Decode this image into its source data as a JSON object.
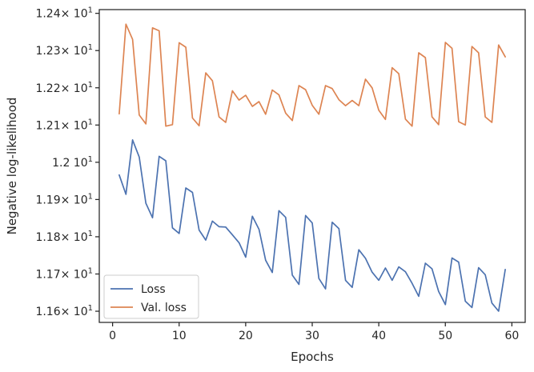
{
  "chart_data": {
    "type": "line",
    "xlabel": "Epochs",
    "ylabel": "Negative log-likelihood",
    "xlim": [
      -2,
      62
    ],
    "ylim": [
      11.57,
      12.41
    ],
    "x_ticks": [
      {
        "value": 0,
        "label": "0"
      },
      {
        "value": 10,
        "label": "10"
      },
      {
        "value": 20,
        "label": "20"
      },
      {
        "value": 30,
        "label": "30"
      },
      {
        "value": 40,
        "label": "40"
      },
      {
        "value": 50,
        "label": "50"
      },
      {
        "value": 60,
        "label": "60"
      }
    ],
    "y_ticks": [
      {
        "value": 11.6,
        "mantissa": "1.16",
        "base": "× 10",
        "exp": "1"
      },
      {
        "value": 11.7,
        "mantissa": "1.17",
        "base": "× 10",
        "exp": "1"
      },
      {
        "value": 11.8,
        "mantissa": "1.18",
        "base": "× 10",
        "exp": "1"
      },
      {
        "value": 11.9,
        "mantissa": "1.19",
        "base": "× 10",
        "exp": "1"
      },
      {
        "value": 12.0,
        "mantissa": "1.2",
        "base": " 10",
        "exp": "1"
      },
      {
        "value": 12.1,
        "mantissa": "1.21",
        "base": "× 10",
        "exp": "1"
      },
      {
        "value": 12.2,
        "mantissa": "1.22",
        "base": "× 10",
        "exp": "1"
      },
      {
        "value": 12.3,
        "mantissa": "1.23",
        "base": "× 10",
        "exp": "1"
      },
      {
        "value": 12.4,
        "mantissa": "1.24",
        "base": "× 10",
        "exp": "1"
      }
    ],
    "grid": false,
    "legend_position": "lower-left",
    "x": [
      1,
      2,
      3,
      4,
      5,
      6,
      7,
      8,
      9,
      10,
      11,
      12,
      13,
      14,
      15,
      16,
      17,
      18,
      19,
      20,
      21,
      22,
      23,
      24,
      25,
      26,
      27,
      28,
      29,
      30,
      31,
      32,
      33,
      34,
      35,
      36,
      37,
      38,
      39,
      40,
      41,
      42,
      43,
      44,
      45,
      46,
      47,
      48,
      49,
      50,
      51,
      52,
      53,
      54,
      55,
      56,
      57,
      58,
      59
    ],
    "series": [
      {
        "name": "Loss",
        "color": "#4c72b0",
        "values": [
          11.966,
          11.914,
          12.06,
          12.014,
          11.89,
          11.851,
          12.016,
          12.004,
          11.824,
          11.809,
          11.931,
          11.919,
          11.818,
          11.791,
          11.842,
          11.827,
          11.826,
          11.805,
          11.784,
          11.745,
          11.855,
          11.82,
          11.737,
          11.704,
          11.87,
          11.852,
          11.697,
          11.672,
          11.857,
          11.837,
          11.688,
          11.66,
          11.839,
          11.822,
          11.683,
          11.664,
          11.765,
          11.742,
          11.705,
          11.683,
          11.716,
          11.683,
          11.719,
          11.706,
          11.675,
          11.64,
          11.729,
          11.714,
          11.653,
          11.618,
          11.743,
          11.732,
          11.627,
          11.61,
          11.717,
          11.698,
          11.622,
          11.6,
          11.712
        ]
      },
      {
        "name": "Val. loss",
        "color": "#dd8452",
        "values": [
          12.13,
          12.371,
          12.33,
          12.127,
          12.103,
          12.361,
          12.353,
          12.097,
          12.101,
          12.321,
          12.309,
          12.119,
          12.098,
          12.24,
          12.219,
          12.122,
          12.107,
          12.192,
          12.167,
          12.18,
          12.15,
          12.163,
          12.129,
          12.194,
          12.181,
          12.132,
          12.112,
          12.206,
          12.195,
          12.153,
          12.129,
          12.206,
          12.198,
          12.168,
          12.152,
          12.166,
          12.152,
          12.223,
          12.2,
          12.14,
          12.115,
          12.254,
          12.238,
          12.116,
          12.097,
          12.294,
          12.281,
          12.122,
          12.101,
          12.322,
          12.306,
          12.109,
          12.1,
          12.311,
          12.294,
          12.122,
          12.107,
          12.315,
          12.283
        ]
      }
    ]
  }
}
